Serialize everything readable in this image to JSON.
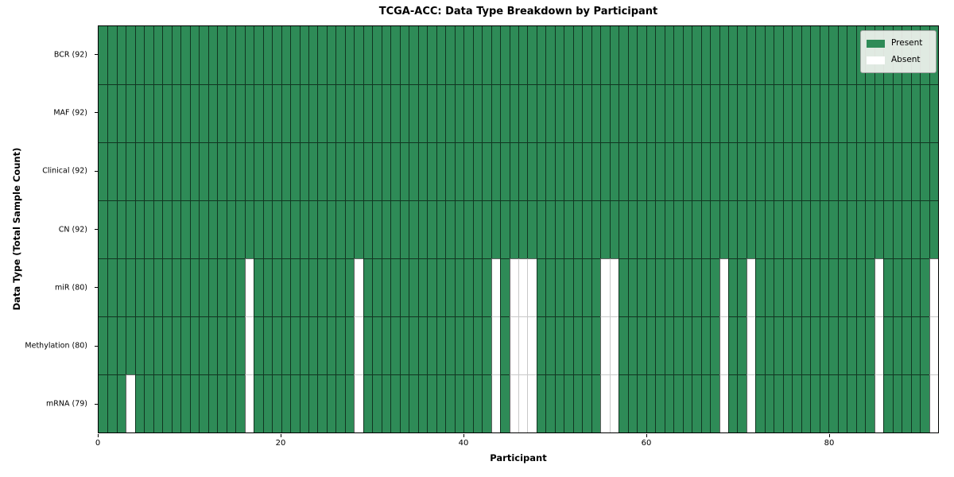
{
  "title": "TCGA-ACC: Data Type Breakdown by Participant",
  "xlabel": "Participant",
  "ylabel": "Data Type (Total Sample Count)",
  "legend": {
    "present_label": "Present",
    "absent_label": "Absent"
  },
  "colors": {
    "present": "#2e8b57",
    "absent": "#ffffff"
  },
  "chart_data": {
    "type": "heatmap",
    "title": "TCGA-ACC: Data Type Breakdown by Participant",
    "xlabel": "Participant",
    "ylabel": "Data Type (Total Sample Count)",
    "n_participants": 92,
    "xlim": [
      0,
      92
    ],
    "x_ticks": [
      0,
      20,
      40,
      60,
      80
    ],
    "grid": false,
    "legend_position": "upper-right",
    "legend": [
      {
        "label": "Present",
        "color": "#2e8b57"
      },
      {
        "label": "Absent",
        "color": "#ffffff"
      }
    ],
    "rows": [
      {
        "label": "BCR (92)",
        "data_type": "BCR",
        "total_samples": 92,
        "absent_participants": []
      },
      {
        "label": "MAF (92)",
        "data_type": "MAF",
        "total_samples": 92,
        "absent_participants": []
      },
      {
        "label": "Clinical (92)",
        "data_type": "Clinical",
        "total_samples": 92,
        "absent_participants": []
      },
      {
        "label": "CN (92)",
        "data_type": "CN",
        "total_samples": 92,
        "absent_participants": []
      },
      {
        "label": "miR (80)",
        "data_type": "miR",
        "total_samples": 80,
        "absent_participants": [
          16,
          28,
          43,
          45,
          46,
          47,
          55,
          56,
          68,
          71,
          85,
          91
        ]
      },
      {
        "label": "Methylation (80)",
        "data_type": "Methylation",
        "total_samples": 80,
        "absent_participants": [
          16,
          28,
          43,
          45,
          46,
          47,
          55,
          56,
          68,
          71,
          85,
          91
        ]
      },
      {
        "label": "mRNA (79)",
        "data_type": "mRNA",
        "total_samples": 79,
        "absent_participants": [
          3,
          16,
          28,
          43,
          45,
          46,
          47,
          55,
          56,
          68,
          71,
          85,
          91
        ]
      }
    ]
  }
}
